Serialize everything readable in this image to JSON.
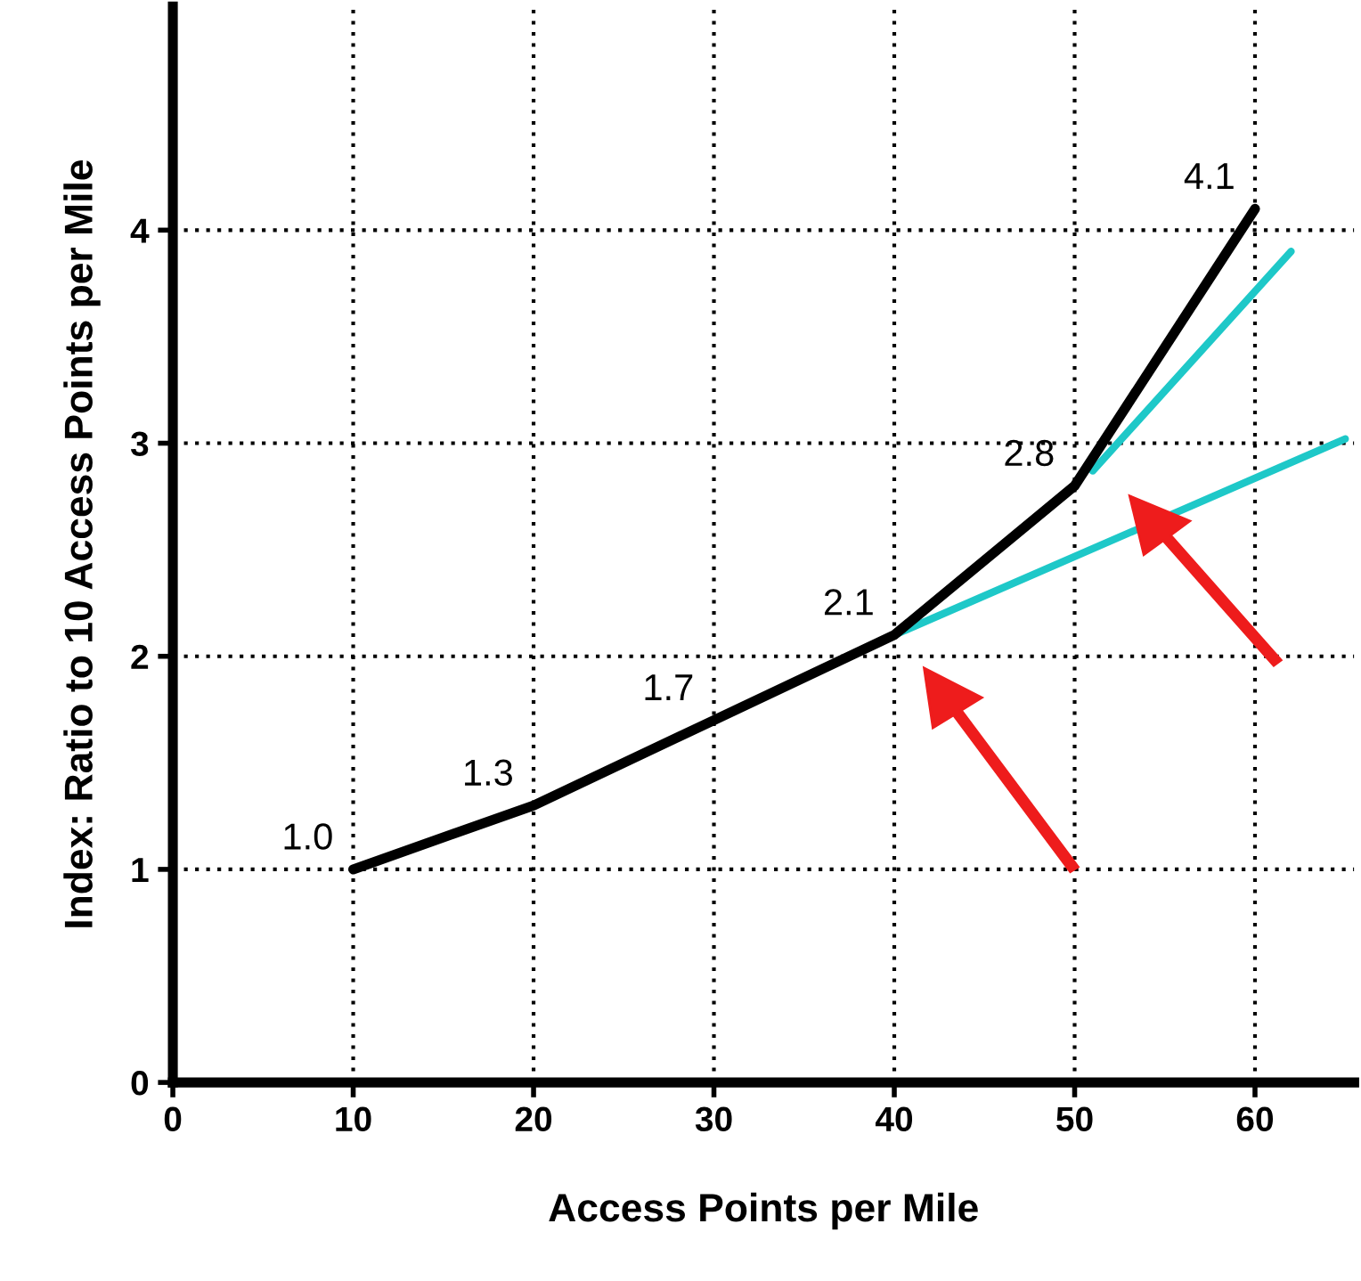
{
  "chart_data": {
    "type": "line",
    "xlabel": "Access Points per Mile",
    "ylabel": "Index: Ratio to 10 Access Points per Mile",
    "xlim": [
      0,
      65.5
    ],
    "ylim": [
      0,
      5.05
    ],
    "xticks": [
      0,
      10,
      20,
      30,
      40,
      50,
      60
    ],
    "yticks": [
      0,
      1,
      2,
      3,
      4
    ],
    "grid": true,
    "marker": "none",
    "line_style": "solid",
    "series": [
      {
        "color": "#000000",
        "x": [
          10,
          20,
          30,
          40,
          50,
          60
        ],
        "values": [
          1.0,
          1.3,
          1.7,
          2.1,
          2.8,
          4.1
        ],
        "value_labels": [
          "1.0",
          "1.3",
          "1.7",
          "2.1",
          "2.8",
          "4.1"
        ]
      },
      {
        "color": "#1ec8c8",
        "x": [
          40,
          65
        ],
        "values": [
          2.1,
          3.02
        ]
      },
      {
        "color": "#1ec8c8",
        "x": [
          51,
          62
        ],
        "values": [
          2.87,
          3.9
        ]
      }
    ]
  }
}
